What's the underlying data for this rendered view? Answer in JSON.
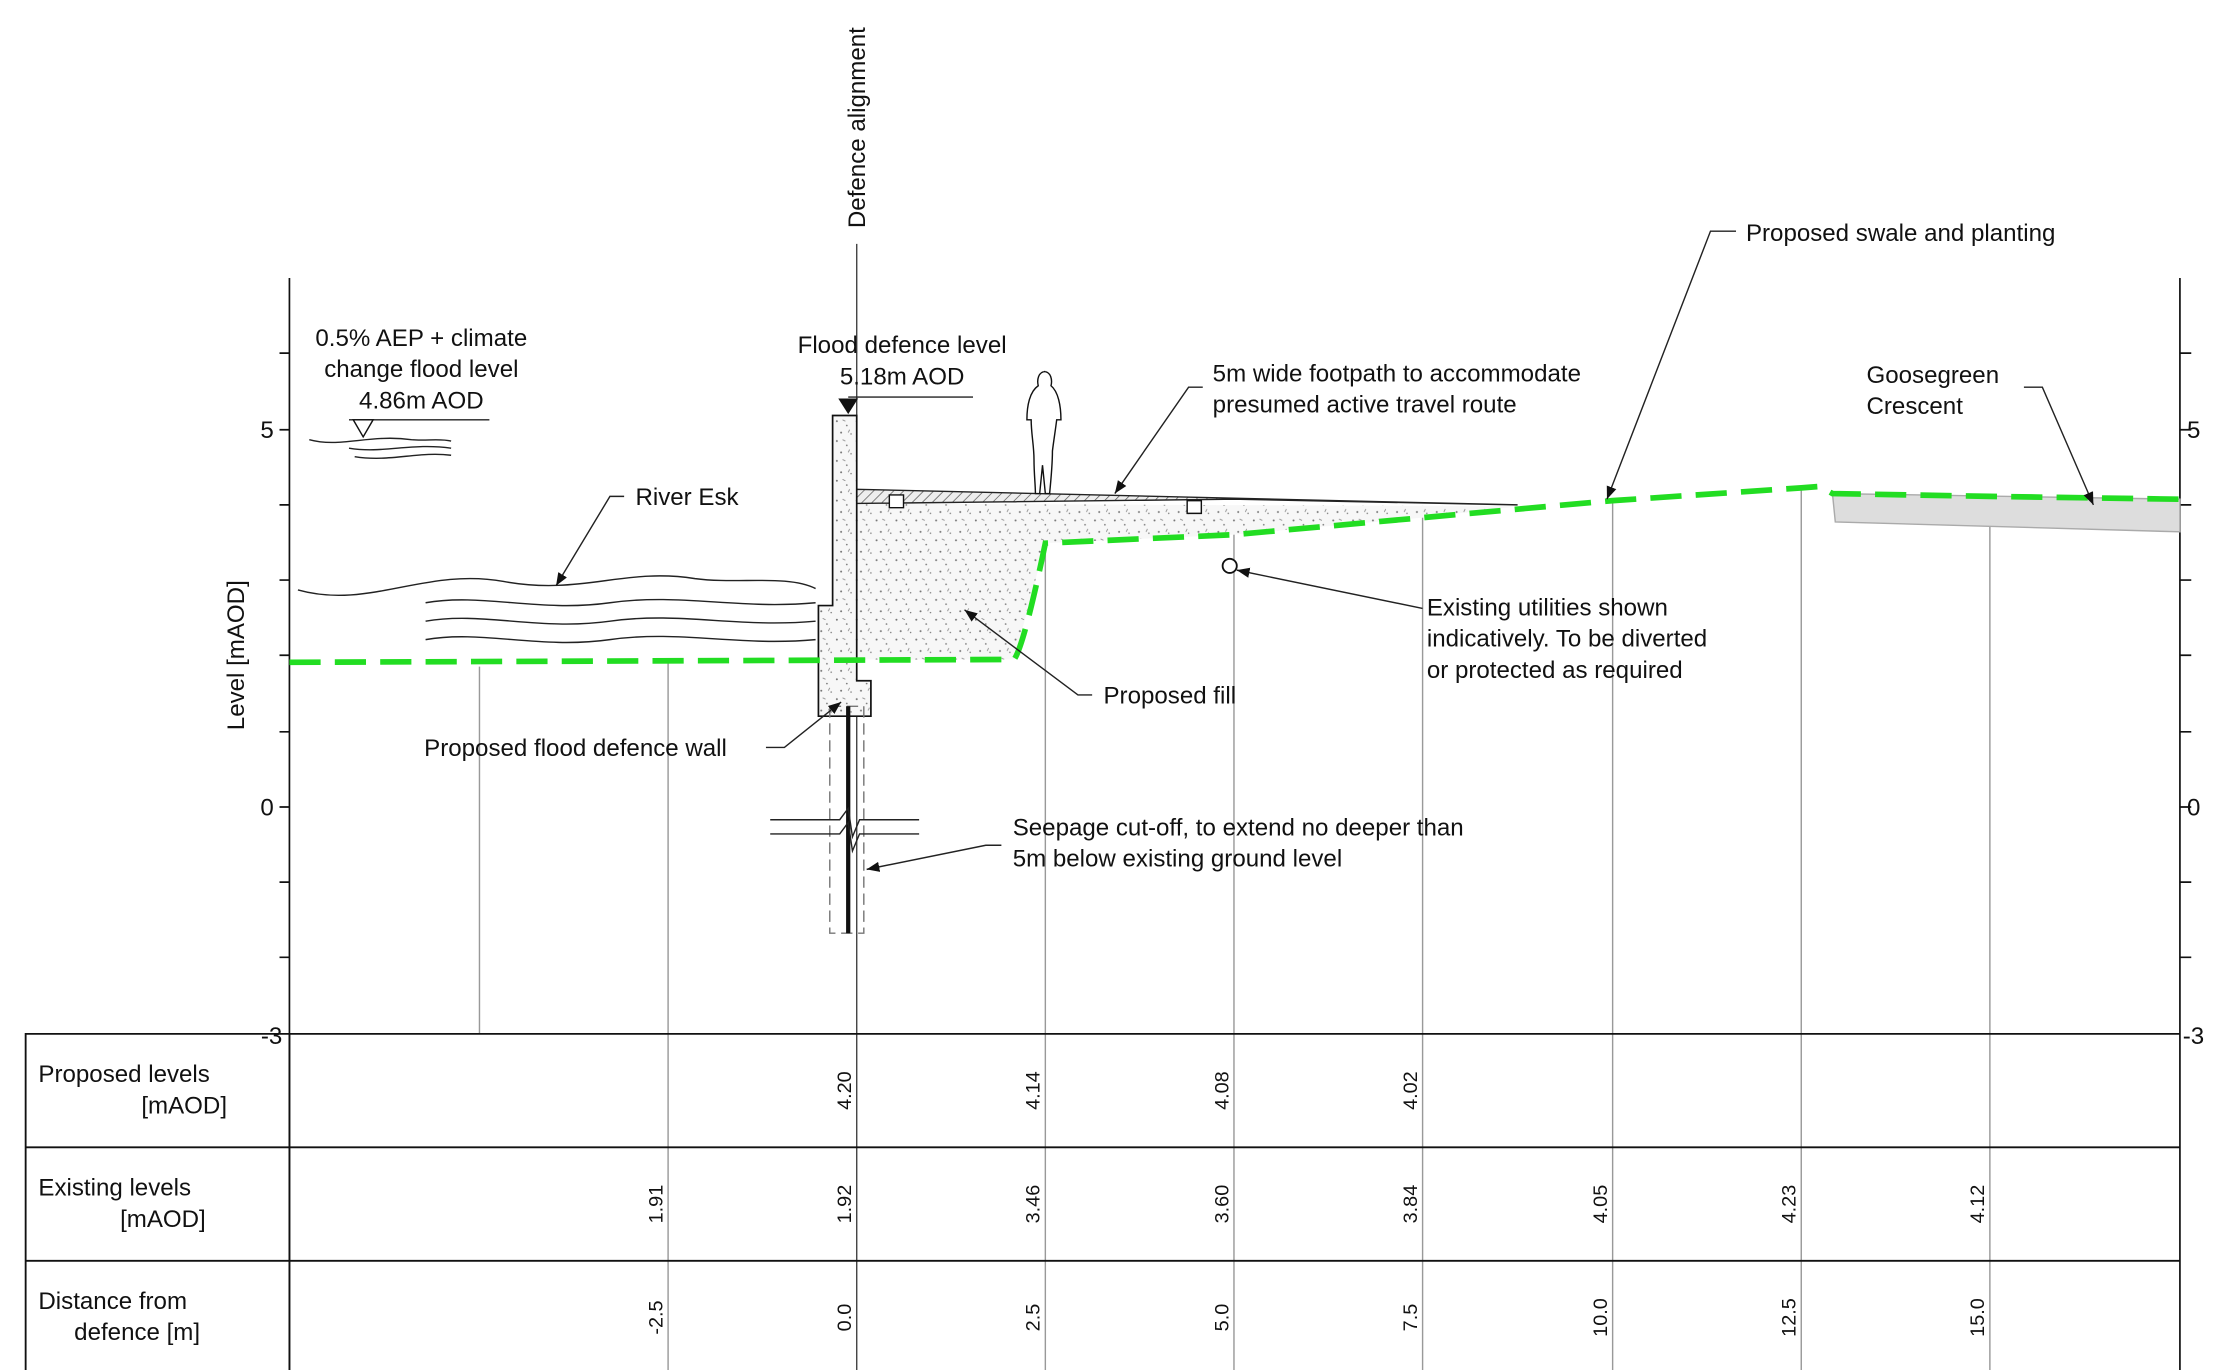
{
  "axis": {
    "title": "Level [mAOD]",
    "ticks": [
      "5",
      "0",
      "-3"
    ]
  },
  "labels": {
    "defence_alignment": "Defence alignment",
    "flood_level": [
      "0.5% AEP + climate",
      "change flood level",
      "4.86m AOD"
    ],
    "defence_level": [
      "Flood defence level",
      "5.18m AOD"
    ],
    "river": "River Esk",
    "footpath": [
      "5m wide footpath to accommodate",
      "presumed active travel route"
    ],
    "swale": "Proposed swale and planting",
    "road": [
      "Goosegreen",
      "Crescent"
    ],
    "utilities": [
      "Existing utilities shown",
      "indicatively. To be diverted",
      "or protected as required"
    ],
    "fill": "Proposed fill",
    "wall": "Proposed flood defence wall",
    "cutoff": [
      "Seepage cut-off, to extend no deeper than",
      "5m below existing ground level"
    ]
  },
  "table": {
    "rows": [
      {
        "label": [
          "Proposed levels",
          "[mAOD]"
        ],
        "values": [
          null,
          "4.20",
          "4.14",
          "4.08",
          "4.02",
          null,
          null,
          null
        ]
      },
      {
        "label": [
          "Existing levels",
          "[mAOD]"
        ],
        "values": [
          "1.91",
          "1.92",
          "3.46",
          "3.60",
          "3.84",
          "4.05",
          "4.23",
          "4.12"
        ]
      },
      {
        "label": [
          "Distance from",
          "defence [m]"
        ],
        "values": [
          "-2.5",
          "0.0",
          "2.5",
          "5.0",
          "7.5",
          "10.0",
          "12.5",
          "15.0"
        ]
      }
    ]
  }
}
